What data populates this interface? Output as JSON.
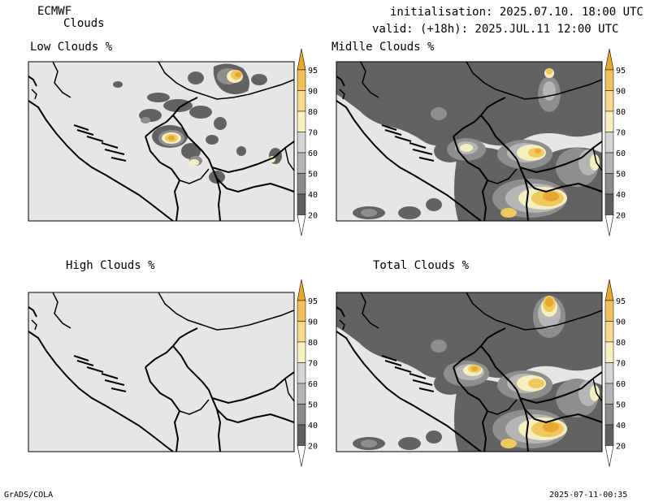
{
  "header": {
    "model": "ECMWF",
    "product": "Clouds",
    "init": "initialisation: 2025.07.10. 18:00 UTC",
    "valid": "valid: (+18h): 2025.JUL.11 12:00 UTC"
  },
  "panels": [
    {
      "title": "Low Clouds %"
    },
    {
      "title": "Midlle Clouds %"
    },
    {
      "title": "High Clouds %"
    },
    {
      "title": "Total Clouds %"
    }
  ],
  "colorbar": {
    "labels": [
      "95",
      "90",
      "80",
      "70",
      "60",
      "50",
      "40",
      "20"
    ],
    "colors": [
      "#e8a82e",
      "#f2c25a",
      "#f7d98e",
      "#f9f0c0",
      "#d4d4d4",
      "#b4b4b4",
      "#8c8c8c",
      "#606060",
      "#ffffff"
    ]
  },
  "colors": {
    "map_background": "#e6e6e6",
    "cloud_dark": "#626262",
    "cloud_mid": "#8e8e8e",
    "cloud_light": "#b6b6b6",
    "cloud_yellow_pale": "#f5efc0",
    "cloud_yellow": "#f0c860",
    "cloud_orange": "#e8a830"
  },
  "footer": {
    "left": "GrADS/COLA",
    "right": "2025-07-11-00:35"
  }
}
